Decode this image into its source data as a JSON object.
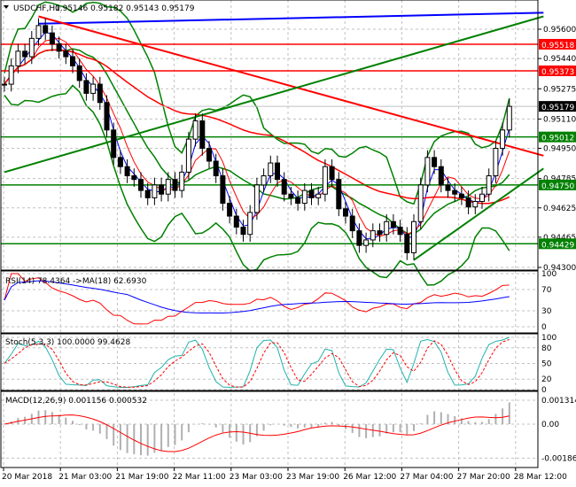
{
  "chart_data": [
    {
      "type": "line",
      "panel": "price",
      "title": "USDCHF,H1",
      "ohlc_label": "0.95146 0.95182 0.95143 0.95179",
      "symbol_menu_icon": "triangle-down-icon",
      "ylim": [
        0.943,
        0.9568
      ],
      "yticks": [
        "0.95600",
        "0.95440",
        "0.95275",
        "0.95110",
        "0.94950",
        "0.94785",
        "0.94625",
        "0.94465",
        "0.94300"
      ],
      "ytick_values": [
        0.956,
        0.9544,
        0.95275,
        0.9511,
        0.9495,
        0.94785,
        0.94625,
        0.94465,
        0.943
      ],
      "current_price": {
        "label": "0.95179",
        "value": 0.95179,
        "color": "#000000"
      },
      "levels": [
        {
          "label": "0.95518",
          "value": 0.95518,
          "color": "#ff0000"
        },
        {
          "label": "0.95373",
          "value": 0.95373,
          "color": "#ff0000"
        },
        {
          "label": "0.95012",
          "value": 0.95012,
          "color": "#008000"
        },
        {
          "label": "0.94750",
          "value": 0.9475,
          "color": "#008000"
        },
        {
          "label": "0.94429",
          "value": 0.94429,
          "color": "#008000"
        }
      ],
      "trendlines": [
        {
          "name": "blue-trendline",
          "from": [
            5,
            0.9563
          ],
          "to": [
            79,
            0.9569
          ],
          "color": "#0000ff"
        },
        {
          "name": "red-trendline",
          "from": [
            5,
            0.9567
          ],
          "to": [
            79,
            0.9491
          ],
          "color": "#ff0000"
        },
        {
          "name": "green-upper-trendline",
          "from": [
            0,
            0.9482
          ],
          "to": [
            79,
            0.9567
          ],
          "color": "#008000"
        },
        {
          "name": "green-lower-trendline",
          "from": [
            60,
            0.9434
          ],
          "to": [
            79,
            0.9484
          ],
          "color": "#008000"
        }
      ],
      "closes": [
        0.953,
        0.954,
        0.9548,
        0.9545,
        0.9555,
        0.9562,
        0.9558,
        0.9552,
        0.9548,
        0.9545,
        0.954,
        0.9532,
        0.9525,
        0.953,
        0.952,
        0.9505,
        0.949,
        0.9485,
        0.948,
        0.9478,
        0.9472,
        0.9468,
        0.9475,
        0.947,
        0.9478,
        0.9472,
        0.9482,
        0.95,
        0.951,
        0.9495,
        0.9488,
        0.948,
        0.9465,
        0.9458,
        0.9452,
        0.9448,
        0.946,
        0.9475,
        0.948,
        0.9487,
        0.9478,
        0.947,
        0.9468,
        0.9465,
        0.9472,
        0.9468,
        0.947,
        0.9485,
        0.9478,
        0.9462,
        0.9458,
        0.945,
        0.9442,
        0.9445,
        0.945,
        0.9448,
        0.9455,
        0.9452,
        0.9448,
        0.9438,
        0.9455,
        0.9475,
        0.949,
        0.9485,
        0.9475,
        0.9472,
        0.947,
        0.9468,
        0.9463,
        0.9466,
        0.947,
        0.948,
        0.9495,
        0.9505,
        0.95179
      ]
    },
    {
      "type": "line",
      "panel": "rsi",
      "label": "RSI(14) 78.4364  ->MA(18) 62.6930",
      "ylim": [
        0,
        100
      ],
      "yticks": [
        "100",
        "70",
        "30",
        "0"
      ],
      "ytick_values": [
        100,
        70,
        30,
        0
      ]
    },
    {
      "type": "line",
      "panel": "stoch",
      "label": "Stoch(5,3,3) 100.0000 99.4628",
      "ylim": [
        0,
        100
      ],
      "yticks": [
        "100",
        "80",
        "50",
        "20",
        "0"
      ],
      "ytick_values": [
        100,
        80,
        50,
        20,
        0
      ]
    },
    {
      "type": "bar",
      "panel": "macd",
      "label": "MACD(12,26,9) 0.001156 0.000532",
      "ylim": [
        -0.001867,
        0.001314
      ],
      "yticks": [
        "0.001314",
        "0.00",
        "-0.001867"
      ],
      "ytick_values": [
        0.001314,
        0,
        -0.001867
      ]
    }
  ],
  "time_axis": [
    "20 Mar 2018",
    "21 Mar 03:00",
    "21 Mar 19:00",
    "22 Mar 11:00",
    "23 Mar 03:00",
    "23 Mar 19:00",
    "26 Mar 12:00",
    "27 Mar 04:00",
    "27 Mar 20:00",
    "28 Mar 12:00"
  ],
  "colors": {
    "bull": "#000000",
    "bear": "#000000",
    "bands": "#008000",
    "ma_fast": "#0000ff",
    "ma_slow": "#ff0000",
    "grid": "#c0c0c0"
  }
}
